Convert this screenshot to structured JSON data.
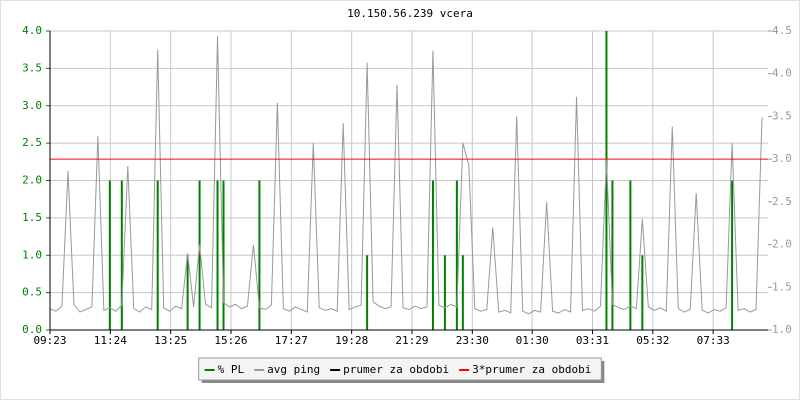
{
  "chart_data": {
    "type": "line",
    "title": "10.150.56.239 vcera",
    "x": [
      0,
      12,
      24,
      36,
      48,
      60,
      72,
      84,
      96,
      108,
      120,
      132,
      144,
      156,
      168,
      180,
      192,
      204,
      216,
      228,
      240,
      252,
      264,
      276,
      288,
      300,
      312,
      324,
      336,
      348,
      360,
      372,
      384,
      396,
      408,
      420,
      432,
      444,
      456,
      468,
      480,
      492,
      504,
      516,
      528,
      540,
      552,
      564,
      576,
      588,
      600,
      612,
      624,
      636,
      648,
      660,
      672,
      684,
      696,
      708,
      720,
      732,
      744,
      756,
      768,
      780,
      792,
      804,
      816,
      828,
      840,
      852,
      864,
      876,
      888,
      900,
      912,
      924,
      936,
      948,
      960,
      972,
      984,
      996,
      1008,
      1020,
      1032,
      1044,
      1056,
      1068,
      1080,
      1092,
      1104,
      1116,
      1128,
      1140,
      1152,
      1164,
      1176,
      1188,
      1200,
      1212,
      1224,
      1236,
      1248,
      1260,
      1272,
      1284,
      1296,
      1308,
      1320,
      1332,
      1344,
      1356,
      1368,
      1380,
      1392,
      1404,
      1416,
      1428
    ],
    "xlim": [
      0,
      1440
    ],
    "xticks": [
      {
        "value": 0,
        "label": "09:23"
      },
      {
        "value": 121,
        "label": "11:24"
      },
      {
        "value": 242,
        "label": "13:25"
      },
      {
        "value": 363,
        "label": "15:26"
      },
      {
        "value": 484,
        "label": "17:27"
      },
      {
        "value": 605,
        "label": "19:28"
      },
      {
        "value": 726,
        "label": "21:29"
      },
      {
        "value": 847,
        "label": "23:30"
      },
      {
        "value": 967,
        "label": "01:30"
      },
      {
        "value": 1088,
        "label": "03:31"
      },
      {
        "value": 1209,
        "label": "05:32"
      },
      {
        "value": 1330,
        "label": "07:33"
      }
    ],
    "ylim": [
      0,
      4
    ],
    "yticks": [
      {
        "value": 0,
        "label": "0.0"
      },
      {
        "value": 0.5,
        "label": "0.5"
      },
      {
        "value": 1,
        "label": "1.0"
      },
      {
        "value": 1.5,
        "label": "1.5"
      },
      {
        "value": 2,
        "label": "2.0"
      },
      {
        "value": 2.5,
        "label": "2.5"
      },
      {
        "value": 3,
        "label": "3.0"
      },
      {
        "value": 3.5,
        "label": "3.5"
      },
      {
        "value": 4,
        "label": "4.0"
      }
    ],
    "y2lim": [
      1,
      4.5
    ],
    "y2ticks": [
      {
        "value": 1,
        "label": "1.0"
      },
      {
        "value": 1.5,
        "label": "1.5"
      },
      {
        "value": 2,
        "label": "2.0"
      },
      {
        "value": 2.5,
        "label": "2.5"
      },
      {
        "value": 3,
        "label": "3.0"
      },
      {
        "value": 3.5,
        "label": "3.5"
      },
      {
        "value": 4,
        "label": "4.0"
      },
      {
        "value": 4.5,
        "label": "4.5"
      }
    ],
    "grid": true,
    "series": [
      {
        "name": "% PL",
        "color": "#008000",
        "style": "impulse",
        "values": [
          0,
          0,
          0,
          0,
          0,
          0,
          0,
          0,
          0,
          0,
          2,
          0,
          2,
          0,
          0,
          0,
          0,
          0,
          2,
          0,
          0,
          0,
          0,
          1,
          0,
          2,
          0,
          0,
          2,
          2,
          0,
          0,
          0,
          0,
          0,
          2,
          0,
          0,
          0,
          0,
          0,
          0,
          0,
          0,
          0,
          0,
          0,
          0,
          0,
          0,
          0,
          0,
          0,
          1,
          0,
          0,
          0,
          0,
          0,
          0,
          0,
          0,
          0,
          0,
          2,
          0,
          1,
          0,
          2,
          1,
          0,
          0,
          0,
          0,
          0,
          0,
          0,
          0,
          0,
          0,
          0,
          0,
          0,
          0,
          0,
          0,
          0,
          0,
          0,
          0,
          0,
          0,
          0,
          4,
          2,
          0,
          0,
          2,
          0,
          1,
          0,
          0,
          0,
          0,
          0,
          0,
          0,
          0,
          0,
          0,
          0,
          0,
          0,
          0,
          2,
          0,
          0,
          0,
          0,
          0
        ]
      },
      {
        "name": "avg ping",
        "color": "#999999",
        "axis": "y2",
        "values": [
          1.25,
          1.22,
          1.28,
          2.86,
          1.3,
          1.21,
          1.24,
          1.27,
          3.27,
          1.23,
          1.26,
          1.22,
          1.29,
          2.92,
          1.25,
          1.21,
          1.27,
          1.24,
          4.28,
          1.26,
          1.22,
          1.28,
          1.25,
          1.9,
          1.27,
          2.0,
          1.3,
          1.26,
          4.44,
          1.32,
          1.27,
          1.3,
          1.25,
          1.28,
          2.0,
          1.26,
          1.24,
          1.29,
          3.66,
          1.25,
          1.22,
          1.27,
          1.24,
          1.21,
          3.19,
          1.26,
          1.23,
          1.25,
          1.22,
          3.42,
          1.24,
          1.27,
          1.29,
          4.13,
          1.33,
          1.28,
          1.25,
          1.27,
          3.87,
          1.26,
          1.24,
          1.28,
          1.25,
          1.27,
          4.27,
          1.29,
          1.26,
          1.3,
          1.27,
          3.19,
          2.93,
          1.25,
          1.22,
          1.24,
          2.2,
          1.21,
          1.23,
          1.2,
          3.5,
          1.22,
          1.19,
          1.23,
          1.21,
          2.5,
          1.22,
          1.2,
          1.24,
          1.21,
          3.73,
          1.23,
          1.25,
          1.22,
          1.28,
          3.0,
          1.3,
          1.26,
          1.24,
          1.28,
          1.25,
          2.3,
          1.27,
          1.23,
          1.26,
          1.22,
          3.38,
          1.25,
          1.21,
          1.24,
          2.6,
          1.23,
          1.2,
          1.24,
          1.22,
          1.26,
          3.19,
          1.23,
          1.25,
          1.21,
          1.24,
          3.49
        ]
      }
    ],
    "reference_lines": [
      {
        "name": "prumer za obdobi",
        "color": "#000000",
        "axis": "y2",
        "value": 1.0
      },
      {
        "name": "3*prumer za obdobi",
        "color": "#ff0000",
        "axis": "y2",
        "value": 3.0
      }
    ]
  }
}
